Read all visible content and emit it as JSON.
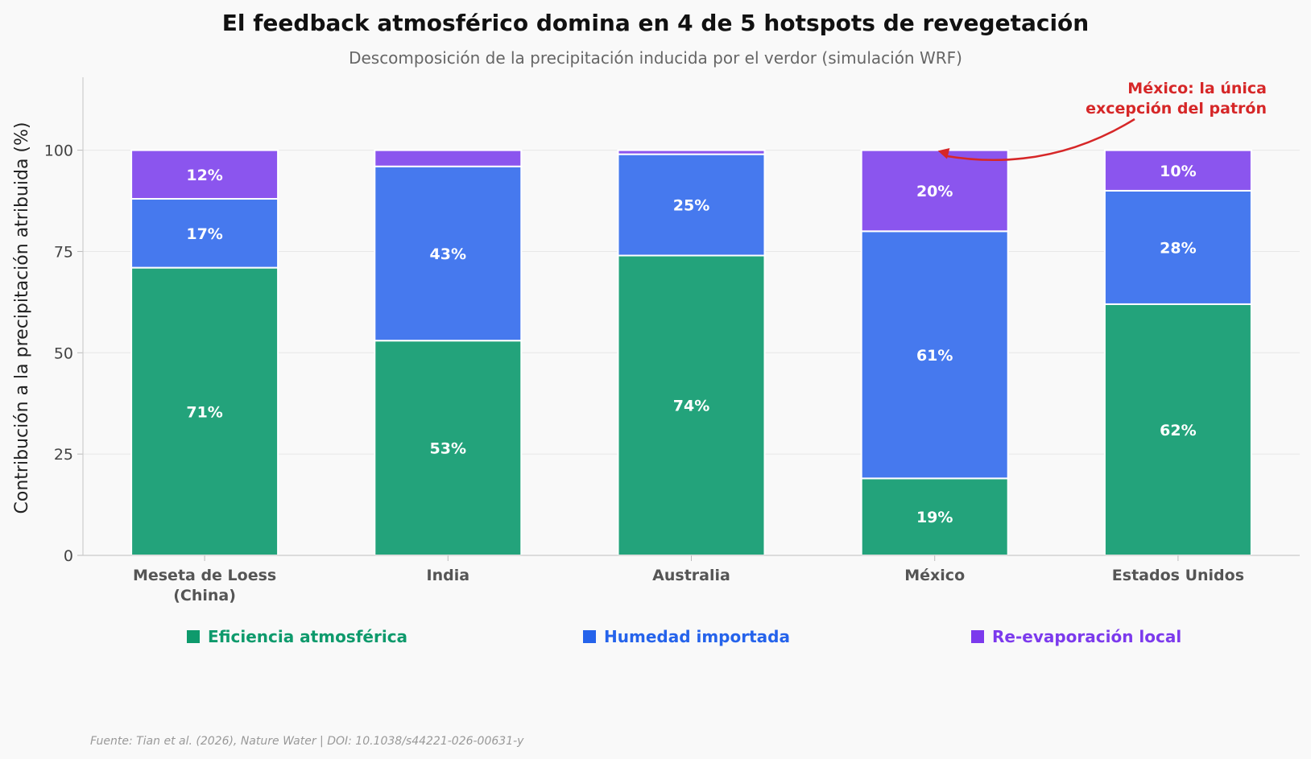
{
  "chart_data": {
    "type": "bar",
    "stacked": true,
    "title": "El feedback atmosférico domina en 4 de 5 hotspots de revegetación",
    "subtitle": "Descomposición de la precipitación inducida por el verdor (simulación WRF)",
    "ylabel": "Contribución a la precipitación atribuida (%)",
    "xlabel": "",
    "ylim": [
      0,
      118
    ],
    "yticks": [
      0,
      25,
      50,
      75,
      100
    ],
    "grid": true,
    "categories": [
      [
        "Meseta de Loess",
        "(China)"
      ],
      [
        "India"
      ],
      [
        "Australia"
      ],
      [
        "México"
      ],
      [
        "Estados Unidos"
      ]
    ],
    "series": [
      {
        "name": "Eficiencia atmosférica",
        "color": "#23a37b",
        "legend_color": "#0e9a6c",
        "values": [
          71,
          53,
          74,
          19,
          62
        ],
        "labels": [
          "71%",
          "53%",
          "74%",
          "19%",
          "62%"
        ]
      },
      {
        "name": "Humedad importada",
        "color": "#4679ee",
        "legend_color": "#2563eb",
        "values": [
          17,
          43,
          25,
          61,
          28
        ],
        "labels": [
          "17%",
          "43%",
          "25%",
          "61%",
          "28%"
        ]
      },
      {
        "name": "Re-evaporación local",
        "color": "#8b55ee",
        "legend_color": "#7c3aed",
        "values": [
          12,
          4,
          1,
          20,
          10
        ],
        "labels": [
          "12%",
          "",
          "",
          "20%",
          "10%"
        ]
      }
    ],
    "legend": "bottom",
    "annotation": {
      "text": [
        "México: la única",
        "excepción del patrón"
      ],
      "color": "#d62728",
      "target_category": 3,
      "target_value": 100
    },
    "source": "Fuente: Tian et al. (2026), Nature Water | DOI: 10.1038/s44221-026-00631-y"
  }
}
